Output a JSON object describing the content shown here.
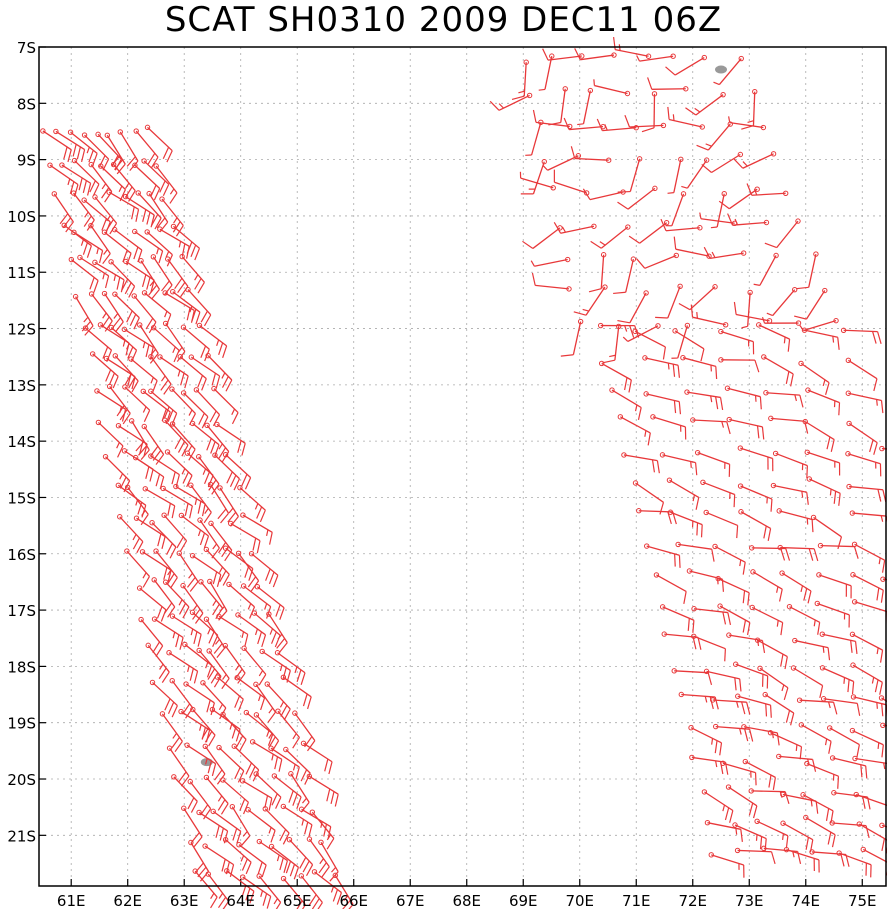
{
  "title": "SCAT SH0310 2009 DEC11 06Z",
  "colors": {
    "barb": "#e8383a",
    "grid": "#aaaaaa",
    "land": "#999999",
    "frame": "#000000"
  },
  "map": {
    "lon_range": [
      60.43,
      75.42
    ],
    "lat_range": [
      -7.0,
      -21.9
    ],
    "lon_ticks": [
      {
        "value": 61,
        "label": "61E"
      },
      {
        "value": 62,
        "label": "62E"
      },
      {
        "value": 63,
        "label": "63E"
      },
      {
        "value": 64,
        "label": "64E"
      },
      {
        "value": 65,
        "label": "65E"
      },
      {
        "value": 66,
        "label": "66E"
      },
      {
        "value": 67,
        "label": "67E"
      },
      {
        "value": 68,
        "label": "68E"
      },
      {
        "value": 69,
        "label": "69E"
      },
      {
        "value": 70,
        "label": "70E"
      },
      {
        "value": 71,
        "label": "71E"
      },
      {
        "value": 72,
        "label": "72E"
      },
      {
        "value": 73,
        "label": "73E"
      },
      {
        "value": 74,
        "label": "74E"
      },
      {
        "value": 75,
        "label": "75E"
      }
    ],
    "lat_ticks": [
      {
        "value": -7,
        "label": "7S"
      },
      {
        "value": -8,
        "label": "8S"
      },
      {
        "value": -9,
        "label": "9S"
      },
      {
        "value": -10,
        "label": "10S"
      },
      {
        "value": -11,
        "label": "11S"
      },
      {
        "value": -12,
        "label": "12S"
      },
      {
        "value": -13,
        "label": "13S"
      },
      {
        "value": -14,
        "label": "14S"
      },
      {
        "value": -15,
        "label": "15S"
      },
      {
        "value": -16,
        "label": "16S"
      },
      {
        "value": -17,
        "label": "17S"
      },
      {
        "value": -18,
        "label": "18S"
      },
      {
        "value": -19,
        "label": "19S"
      },
      {
        "value": -20,
        "label": "20S"
      },
      {
        "value": -21,
        "label": "21S"
      }
    ],
    "swaths": [
      {
        "name": "west-swath",
        "lat_start": -8.5,
        "lat_end": -21.7,
        "lon_west_start": 60.5,
        "lon_west_end": 63.2,
        "lon_east_start": 62.4,
        "lon_east_end": 65.6,
        "rows": 24,
        "cols": 9,
        "dir_from_deg": [
          120,
          150
        ],
        "speed_kt": [
          15,
          30
        ]
      },
      {
        "name": "east-swath-north",
        "lat_start": -7.2,
        "lat_end": -11.9,
        "lon_west_start": 69.0,
        "lon_west_end": 70.0,
        "lon_east_start": 72.8,
        "lon_east_end": 74.6,
        "rows": 9,
        "cols": 8,
        "dir_from_deg": [
          180,
          290
        ],
        "speed_kt": [
          5,
          15
        ]
      },
      {
        "name": "east-swath-south",
        "lat_start": -12.0,
        "lat_end": -21.3,
        "lon_west_start": 70.3,
        "lon_west_end": 72.4,
        "lon_east_start": 75.4,
        "lon_east_end": 75.4,
        "rows": 18,
        "cols": 8,
        "dir_from_deg": [
          90,
          125
        ],
        "speed_kt": [
          10,
          25
        ]
      }
    ],
    "land_features": [
      {
        "name": "island-north",
        "lon": 72.5,
        "lat": -7.4
      },
      {
        "name": "island-south",
        "lon": 63.4,
        "lat": -19.7
      }
    ]
  }
}
